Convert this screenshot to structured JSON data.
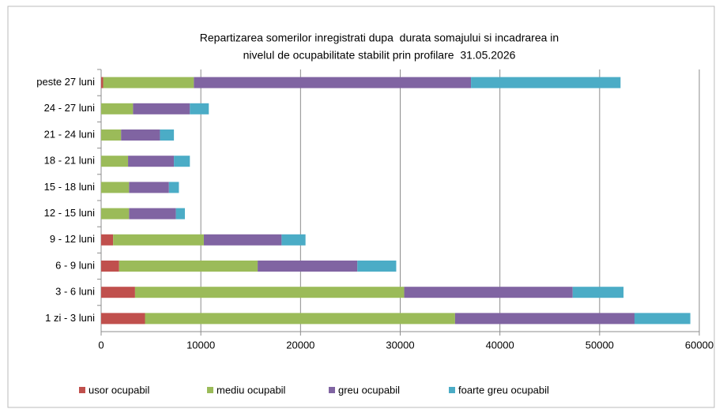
{
  "chart_data": {
    "type": "stacked-bar-horizontal",
    "title": [
      "Repartizarea somerilor inregistrati dupa  durata somajului si incadrarea in",
      "nivelul de ocupabilitate stabilit prin profilare  31.05.2026"
    ],
    "categories": [
      "peste 27 luni",
      "24 - 27 luni",
      "21 - 24 luni",
      "18 - 21 luni",
      "15 - 18 luni",
      "12 - 15 luni",
      "9 - 12 luni",
      "6 - 9 luni",
      "3 - 6 luni",
      "1 zi - 3 luni"
    ],
    "series": [
      {
        "name": "usor ocupabil",
        "color": "#c0504d",
        "values": [
          200,
          0,
          0,
          0,
          0,
          0,
          1200,
          1800,
          3400,
          4400
        ]
      },
      {
        "name": "mediu ocupabil",
        "color": "#9bbb59",
        "values": [
          9100,
          3200,
          2000,
          2700,
          2800,
          2800,
          9100,
          13900,
          27000,
          31100
        ]
      },
      {
        "name": "greu ocupabil",
        "color": "#8064a2",
        "values": [
          27800,
          5700,
          3900,
          4600,
          4000,
          4700,
          7800,
          10000,
          16900,
          18000
        ]
      },
      {
        "name": "foarte greu ocupabil",
        "color": "#4bacc6",
        "values": [
          15000,
          1900,
          1400,
          1600,
          1000,
          900,
          2400,
          3900,
          5100,
          5600
        ]
      }
    ],
    "xlim": [
      0,
      60000
    ],
    "xticks": [
      0,
      10000,
      20000,
      30000,
      40000,
      50000,
      60000
    ],
    "grid": true,
    "legend": "bottom"
  }
}
